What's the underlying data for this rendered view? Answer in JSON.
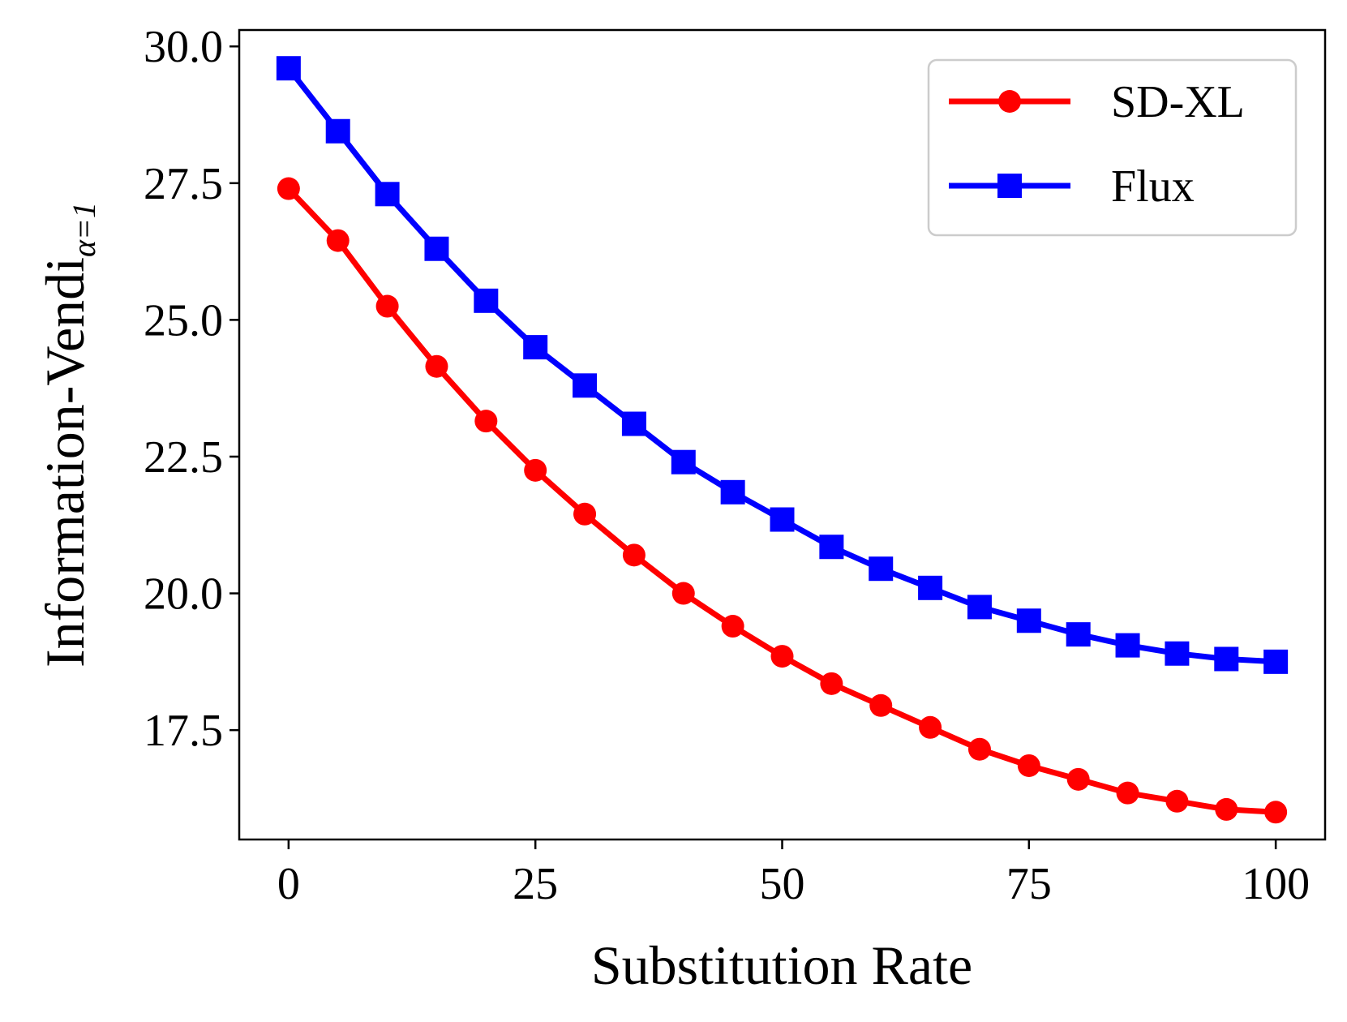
{
  "chart_data": {
    "type": "line",
    "x": [
      0,
      5,
      10,
      15,
      20,
      25,
      30,
      35,
      40,
      45,
      50,
      55,
      60,
      65,
      70,
      75,
      80,
      85,
      90,
      95,
      100
    ],
    "series": [
      {
        "name": "SD-XL",
        "color": "#ff0000",
        "marker": "circle",
        "values": [
          27.4,
          26.45,
          25.25,
          24.15,
          23.15,
          22.25,
          21.45,
          20.7,
          20.0,
          19.4,
          18.85,
          18.35,
          17.95,
          17.55,
          17.15,
          16.85,
          16.6,
          16.35,
          16.2,
          16.05,
          16.0
        ]
      },
      {
        "name": "Flux",
        "color": "#0000ff",
        "marker": "square",
        "values": [
          29.6,
          28.45,
          27.3,
          26.3,
          25.35,
          24.5,
          23.8,
          23.1,
          22.4,
          21.85,
          21.35,
          20.85,
          20.45,
          20.1,
          19.75,
          19.5,
          19.25,
          19.05,
          18.9,
          18.8,
          18.75
        ]
      }
    ],
    "title": "",
    "xlabel": "Substitution Rate",
    "ylabel": "Information-Vendi",
    "ylabel_subscript": "α=1",
    "xlim": [
      -5,
      105
    ],
    "ylim": [
      15.5,
      30.3
    ],
    "xticks": [
      0,
      25,
      50,
      75,
      100
    ],
    "xtick_labels": [
      "0",
      "25",
      "50",
      "75",
      "100"
    ],
    "yticks": [
      17.5,
      20.0,
      22.5,
      25.0,
      27.5,
      30.0
    ],
    "ytick_labels": [
      "17.5",
      "20.0",
      "22.5",
      "25.0",
      "27.5",
      "30.0"
    ],
    "grid": false,
    "legend_position": "top-right"
  }
}
